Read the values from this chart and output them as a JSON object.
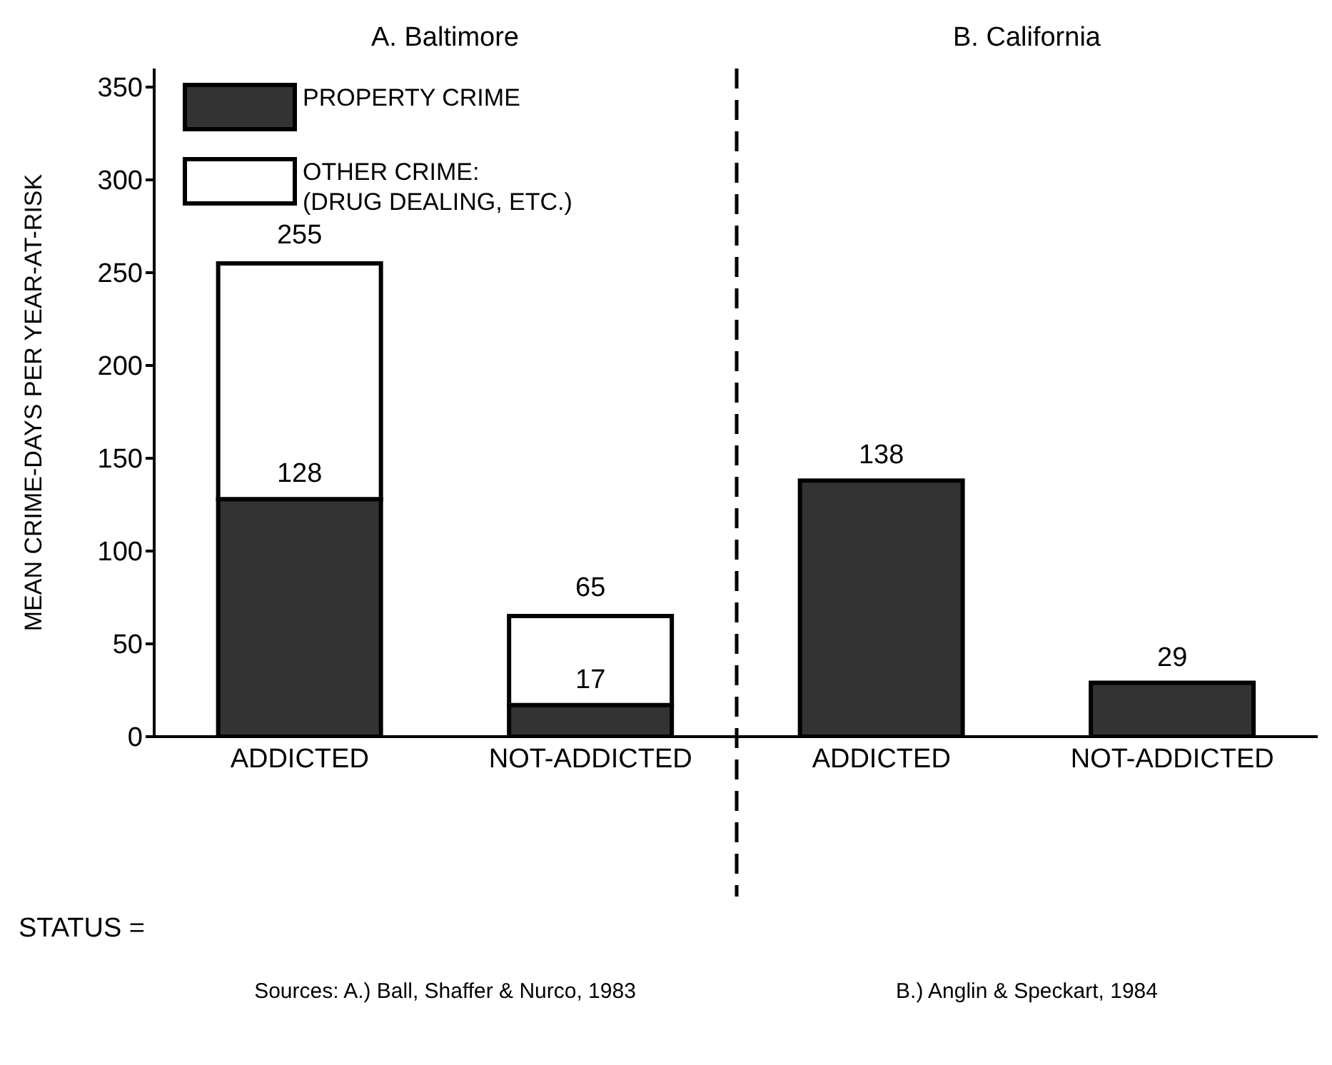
{
  "chart_data": {
    "type": "bar",
    "stacked": true,
    "ylabel": "MEAN CRIME-DAYS PER YEAR-AT-RISK",
    "categories": [
      "ADDICTED",
      "NOT-ADDICTED",
      "ADDICTED",
      "NOT-ADDICTED"
    ],
    "series": [
      {
        "name": "PROPERTY CRIME",
        "color": "#333333",
        "values": [
          128,
          17,
          138,
          29
        ],
        "value_labels": [
          "128",
          "17",
          "138",
          "29"
        ]
      },
      {
        "name": "OTHER CRIME:\n(DRUG DEALING, ETC.)",
        "color": "#ffffff",
        "values": [
          127,
          48,
          null,
          null
        ]
      }
    ],
    "totals": [
      "255",
      "65",
      null,
      null
    ],
    "ylim": [
      0,
      360
    ],
    "yticks": [
      0,
      50,
      100,
      150,
      200,
      250,
      300,
      350
    ],
    "grid": false,
    "legend": "top left",
    "annotations": [
      "A. Baltimore",
      "B. California",
      "STATUS =",
      "Sources: A.) Ball, Shaffer & Nurco, 1983",
      "B.) Anglin & Speckart, 1984"
    ]
  }
}
